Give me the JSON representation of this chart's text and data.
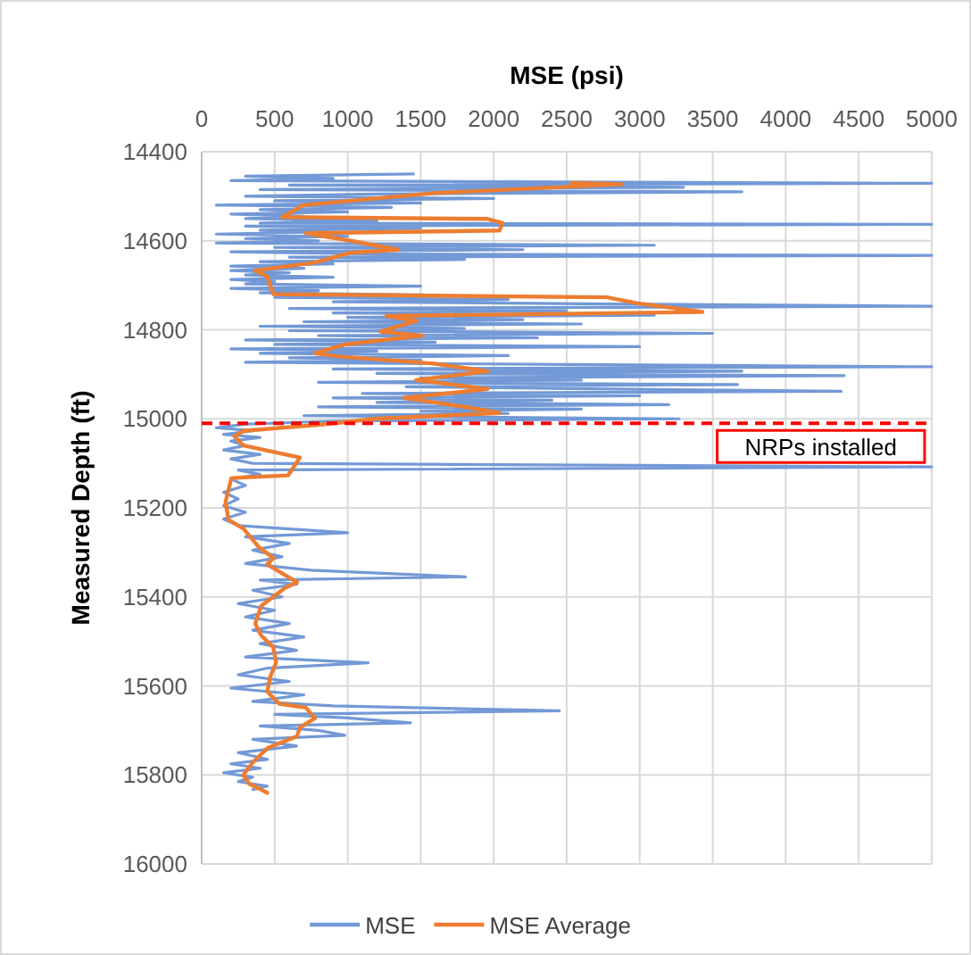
{
  "chart_data": {
    "type": "line",
    "xlabel": "MSE (psi)",
    "ylabel": "Measured Depth (ft)",
    "xlim": [
      0,
      5000
    ],
    "xticks": [
      0,
      500,
      1000,
      1500,
      2000,
      2500,
      3000,
      3500,
      4000,
      4500,
      5000
    ],
    "ylim": [
      16000,
      14400
    ],
    "yticks": [
      14400,
      14600,
      14800,
      15000,
      15200,
      15400,
      15600,
      15800,
      16000
    ],
    "grid": true,
    "legend": "bottom",
    "line_style": "solid",
    "marker": "none",
    "ref_lines": [
      {
        "axis": "y",
        "value": 15010,
        "label": "NRPs installed",
        "color": "#ff0000",
        "line_style": "dashed"
      }
    ],
    "series": [
      {
        "name": "MSE",
        "color": "#7399d6",
        "x": [
          1450,
          300,
          900,
          200,
          5000,
          600,
          3300,
          400,
          3700,
          1200,
          300,
          2000,
          500,
          1500,
          100,
          1300,
          400,
          1000,
          200,
          700,
          300,
          1200,
          400,
          5000,
          300,
          1500,
          400,
          900,
          100,
          1000,
          300,
          800,
          100,
          3100,
          500,
          2200,
          200,
          1200,
          5000,
          600,
          1800,
          400,
          900,
          200,
          700,
          200,
          600,
          300,
          900,
          200,
          500,
          300,
          1500,
          200,
          800,
          400,
          1600,
          500,
          2100,
          900,
          2800,
          5000,
          600,
          2500,
          900,
          3100,
          1000,
          2200,
          700,
          2600,
          400,
          1800,
          600,
          3500,
          800,
          2300,
          300,
          1600,
          500,
          3000,
          200,
          1200,
          400,
          2100,
          600,
          1500,
          300,
          2500,
          5000,
          900,
          3700,
          1200,
          4400,
          1500,
          2600,
          800,
          3670,
          1400,
          2800,
          4380,
          1100,
          3000,
          900,
          2400,
          1200,
          3200,
          800,
          2600,
          1500,
          2100,
          700,
          3270,
          900,
          300,
          100,
          350,
          150,
          400,
          200,
          300,
          150,
          400,
          200,
          350,
          5000,
          250,
          400,
          200,
          300,
          150,
          250,
          150,
          300,
          150,
          250,
          1000,
          300,
          600,
          350,
          550,
          300,
          750,
          1806,
          400,
          650,
          350,
          550,
          250,
          500,
          300,
          600,
          350,
          700,
          400,
          650,
          300,
          1140,
          450,
          250,
          600,
          200,
          700,
          350,
          900,
          2450,
          500,
          1000,
          1430,
          400,
          800,
          980,
          350,
          650,
          250,
          450,
          200,
          400,
          150,
          350,
          250,
          450,
          350
        ],
        "values": [
          14450,
          14455,
          14460,
          14465,
          14471,
          14475,
          14480,
          14485,
          14490,
          14495,
          14500,
          14505,
          14510,
          14515,
          14520,
          14525,
          14530,
          14535,
          14540,
          14545,
          14550,
          14555,
          14560,
          14563,
          14567,
          14572,
          14576,
          14580,
          14585,
          14590,
          14595,
          14600,
          14605,
          14610,
          14615,
          14620,
          14625,
          14630,
          14633,
          14637,
          14642,
          14647,
          14652,
          14657,
          14662,
          14667,
          14672,
          14677,
          14682,
          14687,
          14692,
          14697,
          14702,
          14707,
          14712,
          14717,
          14722,
          14727,
          14732,
          14737,
          14742,
          14747,
          14752,
          14757,
          14762,
          14767,
          14772,
          14777,
          14782,
          14787,
          14792,
          14797,
          14802,
          14808,
          14813,
          14818,
          14823,
          14828,
          14833,
          14838,
          14843,
          14848,
          14853,
          14858,
          14863,
          14868,
          14873,
          14878,
          14883,
          14888,
          14893,
          14898,
          14903,
          14908,
          14913,
          14918,
          14923,
          14928,
          14933,
          14938,
          14943,
          14948,
          14953,
          14958,
          14963,
          14968,
          14973,
          14978,
          14983,
          14988,
          14993,
          15000,
          15005,
          15012,
          15020,
          15027,
          15035,
          15042,
          15050,
          15060,
          15070,
          15080,
          15090,
          15100,
          15108,
          15115,
          15125,
          15135,
          15150,
          15165,
          15180,
          15195,
          15210,
          15225,
          15240,
          15256,
          15265,
          15280,
          15295,
          15310,
          15325,
          15340,
          15355,
          15362,
          15372,
          15385,
          15400,
          15415,
          15430,
          15445,
          15460,
          15475,
          15490,
          15505,
          15520,
          15535,
          15548,
          15560,
          15575,
          15590,
          15605,
          15620,
          15635,
          15645,
          15656,
          15664,
          15672,
          15683,
          15690,
          15700,
          15711,
          15720,
          15735,
          15750,
          15765,
          15775,
          15785,
          15795,
          15805,
          15815,
          15825,
          15833
        ]
      },
      {
        "name": "MSE Average",
        "color": "#ed7d31",
        "x": [
          2530,
          2876,
          1591,
          694,
          551,
          1958,
          2060,
          2040,
          714,
          1020,
          1346,
          1020,
          775,
          367,
          449,
          490,
          2775,
          2980,
          3430,
          1265,
          1470,
          1224,
          1510,
          980,
          775,
          940,
          1590,
          1958,
          1469,
          1958,
          1387,
          1795,
          2040,
          1183,
          816,
          286,
          225,
          286,
          673,
          592,
          204,
          163,
          184,
          286,
          388,
          490,
          449,
          551,
          653,
          571,
          408,
          367,
          408,
          490,
          510,
          469,
          449,
          531,
          714,
          775,
          673,
          653,
          449,
          347,
          286,
          326,
          408,
          449
        ],
        "values": [
          14470,
          14473,
          14493,
          14520,
          14547,
          14551,
          14560,
          14577,
          14583,
          14600,
          14620,
          14627,
          14649,
          14667,
          14680,
          14720,
          14727,
          14740,
          14760,
          14769,
          14780,
          14804,
          14813,
          14833,
          14853,
          14860,
          14876,
          14893,
          14913,
          14933,
          14953,
          14973,
          14987,
          15000,
          15013,
          15027,
          15040,
          15060,
          15087,
          15127,
          15133,
          15187,
          15227,
          15247,
          15287,
          15313,
          15327,
          15347,
          15367,
          15380,
          15420,
          15460,
          15487,
          15513,
          15547,
          15580,
          15613,
          15640,
          15649,
          15673,
          15693,
          15713,
          15740,
          15773,
          15800,
          15820,
          15833,
          15840
        ]
      }
    ]
  }
}
